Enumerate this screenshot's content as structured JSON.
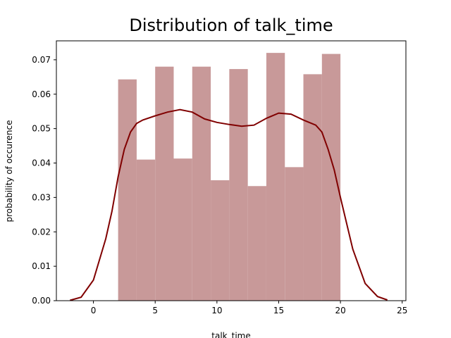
{
  "chart_data": {
    "type": "bar",
    "title": "Distribution of talk_time",
    "xlabel": "talk_time",
    "ylabel": "probability of occurence",
    "xlim": [
      -3.0,
      25.3
    ],
    "ylim": [
      0,
      0.0755
    ],
    "x_ticks": [
      0,
      5,
      10,
      15,
      20,
      25
    ],
    "y_ticks": [
      0.0,
      0.01,
      0.02,
      0.03,
      0.04,
      0.05,
      0.06,
      0.07
    ],
    "bar_color": "#c89999",
    "kde_color": "#800000",
    "grid": false,
    "bins": [
      {
        "x0": 2.0,
        "x1": 3.5,
        "value": 0.0643
      },
      {
        "x0": 3.5,
        "x1": 5.0,
        "value": 0.041
      },
      {
        "x0": 5.0,
        "x1": 6.5,
        "value": 0.068
      },
      {
        "x0": 6.5,
        "x1": 8.0,
        "value": 0.0413
      },
      {
        "x0": 8.0,
        "x1": 9.5,
        "value": 0.068
      },
      {
        "x0": 9.5,
        "x1": 11.0,
        "value": 0.035
      },
      {
        "x0": 11.0,
        "x1": 12.5,
        "value": 0.0673
      },
      {
        "x0": 12.5,
        "x1": 14.0,
        "value": 0.0333
      },
      {
        "x0": 14.0,
        "x1": 15.5,
        "value": 0.072
      },
      {
        "x0": 15.5,
        "x1": 17.0,
        "value": 0.0388
      },
      {
        "x0": 17.0,
        "x1": 18.5,
        "value": 0.0658
      },
      {
        "x0": 18.5,
        "x1": 20.0,
        "value": 0.0717
      }
    ],
    "kde": {
      "x": [
        -1.9,
        -1.0,
        0.0,
        1.0,
        1.5,
        2.0,
        2.5,
        3.0,
        3.5,
        4.0,
        5.0,
        6.0,
        7.0,
        8.0,
        9.0,
        10.0,
        11.0,
        12.0,
        13.0,
        14.0,
        15.0,
        16.0,
        17.0,
        18.0,
        18.5,
        19.0,
        19.5,
        20.0,
        21.0,
        22.0,
        23.0,
        23.8
      ],
      "y": [
        0.0001,
        0.001,
        0.006,
        0.018,
        0.026,
        0.036,
        0.044,
        0.049,
        0.0515,
        0.0525,
        0.0537,
        0.0548,
        0.0555,
        0.0548,
        0.0528,
        0.0518,
        0.0512,
        0.0507,
        0.051,
        0.053,
        0.0545,
        0.0542,
        0.0525,
        0.051,
        0.049,
        0.044,
        0.038,
        0.03,
        0.015,
        0.005,
        0.0012,
        0.0002
      ]
    }
  }
}
